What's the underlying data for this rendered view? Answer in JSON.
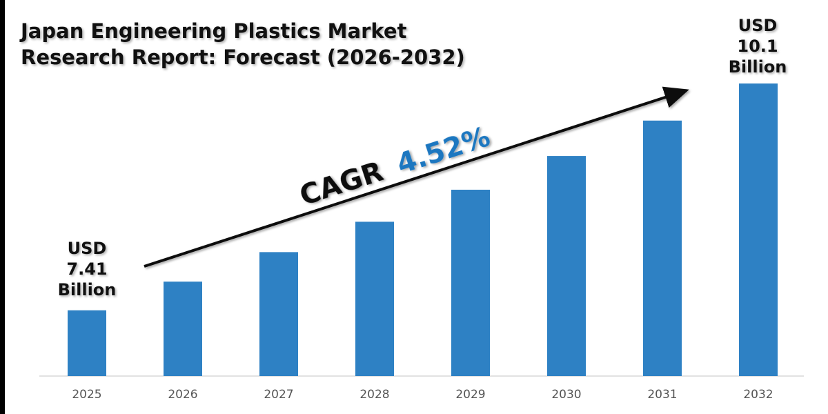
{
  "chart_data": {
    "type": "bar",
    "title": "Japan Engineering Plastics Market\nResearch Report: Forecast (2026-2032)",
    "categories": [
      "2025",
      "2026",
      "2027",
      "2028",
      "2029",
      "2030",
      "2031",
      "2032"
    ],
    "values": [
      7.41,
      7.75,
      8.1,
      8.46,
      8.84,
      9.24,
      9.66,
      10.1
    ],
    "unit": "USD Billion",
    "ylim": [
      6.63,
      10.1
    ],
    "grid": false,
    "bar_color": "#2E81C4",
    "annotations": {
      "start_label": [
        "USD",
        "7.41",
        "Billion"
      ],
      "end_label": [
        "USD",
        "10.1",
        "Billion"
      ],
      "cagr_prefix": "CAGR",
      "cagr_value": "4.52%",
      "cagr_color": "#1F77C0"
    }
  }
}
